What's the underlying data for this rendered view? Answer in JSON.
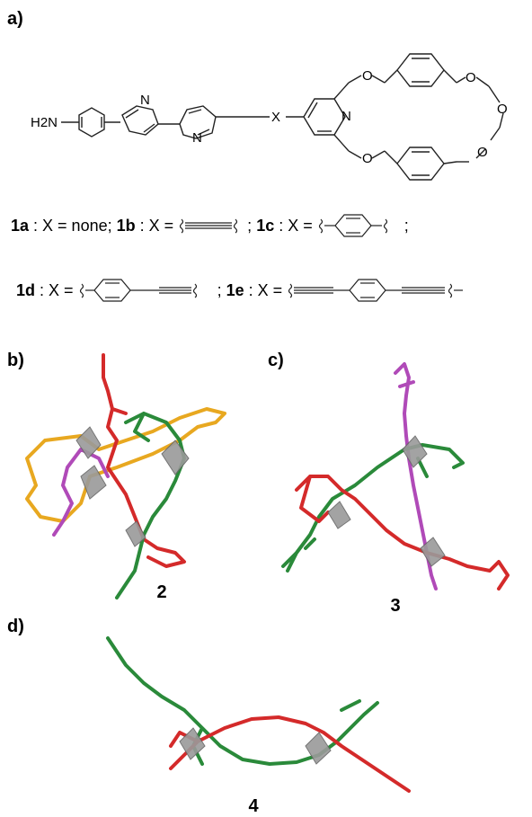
{
  "panels": {
    "a": "a)",
    "b": "b)",
    "c": "c)",
    "d": "d)"
  },
  "molecule": {
    "amine": "H2N",
    "n_label": "N",
    "x_label": "X",
    "o_label": "O"
  },
  "compounds": {
    "line1": {
      "c1a": "1a",
      "t1a": " : X = none; ",
      "c1b": "1b",
      "t1b": " : X = ",
      "sep1": " ; ",
      "c1c": "1c",
      "t1c": " : X = ",
      "sep2": " ;"
    },
    "line2": {
      "c1d": "1d",
      "t1d": " : X = ",
      "sep3": " ; ",
      "c1e": "1e",
      "t1e": " : X = "
    }
  },
  "structures": {
    "s2": "2",
    "s3": "3",
    "s4": "4"
  },
  "colors": {
    "red": "#d42a2a",
    "green": "#2a8a3a",
    "magenta": "#b04ab8",
    "orange": "#e8a820",
    "gray": "#9a9a9a"
  }
}
